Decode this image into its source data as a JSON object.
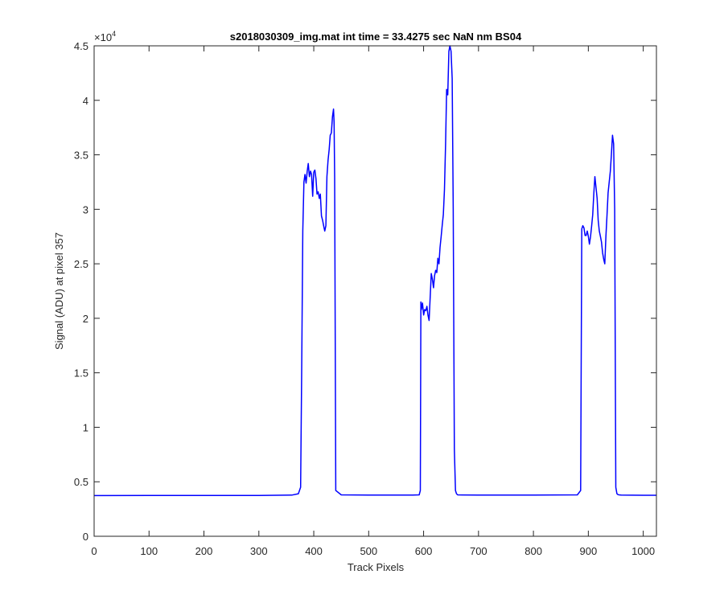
{
  "chart_data": {
    "type": "line",
    "title": "s2018030309_img.mat int time = 33.4275 sec  NaN nm BS04",
    "xlabel": "Track Pixels",
    "ylabel": "Signal (ADU) at pixel 357",
    "xlim": [
      0,
      1024
    ],
    "ylim": [
      0,
      45000
    ],
    "x_ticks": [
      0,
      100,
      200,
      300,
      400,
      500,
      600,
      700,
      800,
      900,
      1000
    ],
    "x_tick_labels": [
      "0",
      "100",
      "200",
      "300",
      "400",
      "500",
      "600",
      "700",
      "800",
      "900",
      "1000"
    ],
    "y_ticks": [
      0,
      5000,
      10000,
      15000,
      20000,
      25000,
      30000,
      35000,
      40000,
      45000
    ],
    "y_tick_labels": [
      "0",
      "0.5",
      "1",
      "1.5",
      "2",
      "2.5",
      "3",
      "3.5",
      "4",
      "4.5"
    ],
    "y_exponent": {
      "base": "×10",
      "power": "4"
    },
    "grid": false,
    "line_color": "#0000ff",
    "series": [
      {
        "x": [
          0,
          100,
          200,
          300,
          360,
          372,
          376,
          378,
          380,
          382,
          384,
          386,
          388,
          390,
          392,
          394,
          396,
          398,
          400,
          402,
          404,
          406,
          408,
          410,
          412,
          414,
          416,
          418,
          420,
          422,
          424,
          426,
          428,
          430,
          432,
          434,
          436,
          437,
          438,
          440,
          450,
          500,
          580,
          592,
          594,
          595,
          596,
          598,
          600,
          602,
          604,
          606,
          608,
          610,
          612,
          614,
          616,
          618,
          620,
          622,
          624,
          626,
          628,
          630,
          632,
          634,
          636,
          638,
          640,
          642,
          644,
          646,
          648,
          650,
          652,
          654,
          656,
          658,
          660,
          662,
          670,
          700,
          800,
          880,
          886,
          888,
          890,
          892,
          894,
          896,
          898,
          900,
          902,
          904,
          906,
          908,
          910,
          912,
          914,
          916,
          918,
          920,
          922,
          924,
          926,
          928,
          930,
          932,
          934,
          936,
          938,
          940,
          942,
          944,
          946,
          948,
          950,
          952,
          954,
          956,
          960,
          1000,
          1024
        ],
        "y": [
          3730,
          3740,
          3740,
          3750,
          3780,
          3900,
          4500,
          15000,
          28000,
          32500,
          33200,
          32400,
          33500,
          34200,
          33000,
          33500,
          33200,
          31200,
          33400,
          33600,
          32800,
          31400,
          31600,
          31000,
          31400,
          29400,
          29000,
          28500,
          28000,
          28500,
          33000,
          34500,
          35500,
          36800,
          37000,
          38500,
          39200,
          38000,
          33000,
          4200,
          3800,
          3780,
          3780,
          3800,
          4200,
          21500,
          20800,
          21400,
          20300,
          20800,
          20700,
          21100,
          20300,
          19800,
          22000,
          24100,
          23600,
          22800,
          23900,
          24400,
          24200,
          25500,
          25000,
          26500,
          27500,
          28600,
          29500,
          31800,
          36000,
          41000,
          40500,
          44500,
          45000,
          44500,
          42000,
          30000,
          8000,
          4200,
          3900,
          3800,
          3790,
          3780,
          3780,
          3800,
          4200,
          28200,
          28500,
          28300,
          27600,
          27600,
          28000,
          27500,
          26800,
          27500,
          28500,
          29500,
          31500,
          33000,
          32000,
          31000,
          29000,
          28000,
          27500,
          27000,
          26000,
          25400,
          25000,
          27500,
          29500,
          31500,
          32500,
          33500,
          35000,
          36800,
          36000,
          30000,
          4500,
          3900,
          3820,
          3800,
          3780,
          3760,
          3760
        ]
      }
    ]
  }
}
